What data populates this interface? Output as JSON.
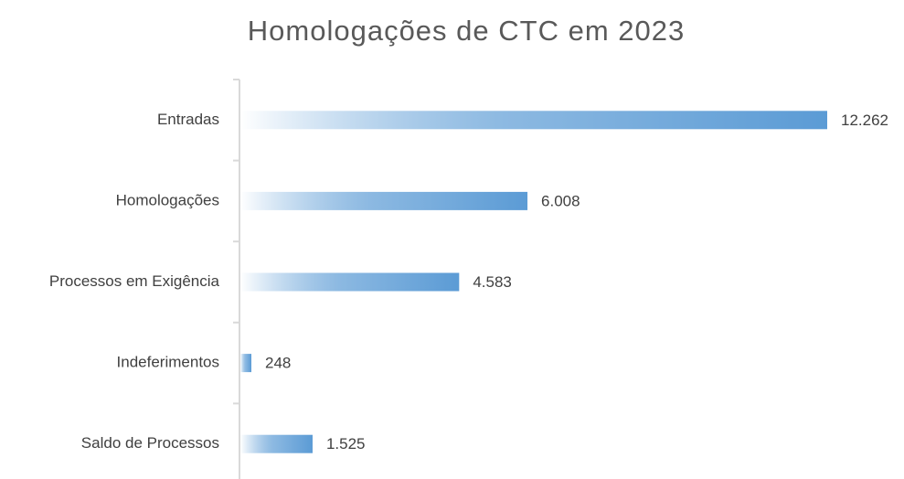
{
  "chart_data": {
    "type": "bar",
    "orientation": "horizontal",
    "title": "Homologações de CTC em 2023",
    "categories": [
      "Entradas",
      "Homologações",
      "Processos em Exigência",
      "Indeferimentos",
      "Saldo de Processos"
    ],
    "values": [
      12262,
      6008,
      4583,
      248,
      1525
    ],
    "value_labels": [
      "12.262",
      "6.008",
      "4.583",
      "248",
      "1.525"
    ],
    "color": "#5b9bd5"
  }
}
